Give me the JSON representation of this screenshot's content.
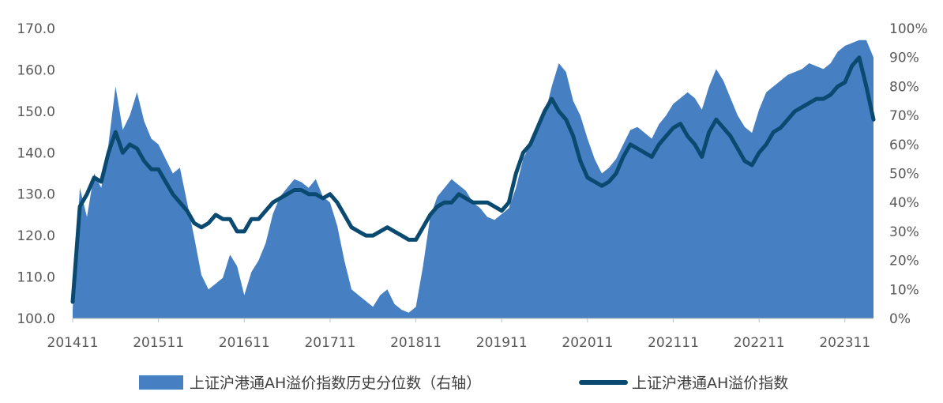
{
  "chart_data": {
    "type": "area",
    "x_tick_labels": [
      "201411",
      "201511",
      "201611",
      "201711",
      "201811",
      "201911",
      "202011",
      "202111",
      "202211",
      "202311"
    ],
    "x": [
      "201411",
      "201412",
      "201501",
      "201502",
      "201503",
      "201504",
      "201505",
      "201506",
      "201507",
      "201508",
      "201509",
      "201510",
      "201511",
      "201512",
      "201601",
      "201602",
      "201603",
      "201604",
      "201605",
      "201606",
      "201607",
      "201608",
      "201609",
      "201610",
      "201611",
      "201612",
      "201701",
      "201702",
      "201703",
      "201704",
      "201705",
      "201706",
      "201707",
      "201708",
      "201709",
      "201710",
      "201711",
      "201712",
      "201801",
      "201802",
      "201803",
      "201804",
      "201805",
      "201806",
      "201807",
      "201808",
      "201809",
      "201810",
      "201811",
      "201812",
      "201901",
      "201902",
      "201903",
      "201904",
      "201905",
      "201906",
      "201907",
      "201908",
      "201909",
      "201910",
      "201911",
      "201912",
      "202001",
      "202002",
      "202003",
      "202004",
      "202005",
      "202006",
      "202007",
      "202008",
      "202009",
      "202010",
      "202011",
      "202012",
      "202101",
      "202102",
      "202103",
      "202104",
      "202105",
      "202106",
      "202107",
      "202108",
      "202109",
      "202110",
      "202111",
      "202112",
      "202201",
      "202202",
      "202203",
      "202204",
      "202205",
      "202206",
      "202207",
      "202208",
      "202209",
      "202210",
      "202211",
      "202212",
      "202301",
      "202302",
      "202303",
      "202304",
      "202305",
      "202306",
      "202307",
      "202308",
      "202309",
      "202310",
      "202311",
      "202312",
      "202401",
      "202402",
      "202403"
    ],
    "y_left": {
      "ticks": [
        "100.0",
        "110.0",
        "120.0",
        "130.0",
        "140.0",
        "150.0",
        "160.0",
        "170.0"
      ],
      "range": [
        100,
        170
      ]
    },
    "y_right": {
      "ticks": [
        "0%",
        "10%",
        "20%",
        "30%",
        "40%",
        "50%",
        "60%",
        "70%",
        "80%",
        "90%",
        "100%"
      ],
      "range": [
        0,
        100
      ]
    },
    "series": [
      {
        "name": "上证沪港通AH溢价指数历史分位数（右轴）",
        "axis": "right",
        "render": "area",
        "color": "#4680c2",
        "values": [
          3,
          45,
          35,
          50,
          45,
          60,
          80,
          65,
          70,
          78,
          68,
          62,
          60,
          55,
          50,
          52,
          40,
          28,
          15,
          10,
          12,
          14,
          22,
          18,
          8,
          16,
          20,
          26,
          36,
          42,
          45,
          48,
          47,
          45,
          48,
          42,
          40,
          32,
          20,
          10,
          8,
          6,
          4,
          8,
          10,
          5,
          3,
          2,
          4,
          18,
          35,
          42,
          45,
          48,
          46,
          44,
          40,
          38,
          35,
          34,
          36,
          38,
          45,
          55,
          60,
          65,
          70,
          80,
          88,
          85,
          75,
          70,
          62,
          55,
          50,
          52,
          55,
          60,
          65,
          66,
          64,
          62,
          67,
          70,
          74,
          76,
          78,
          76,
          72,
          80,
          86,
          82,
          76,
          70,
          66,
          64,
          72,
          78,
          80,
          82,
          84,
          85,
          86,
          88,
          87,
          86,
          88,
          92,
          94,
          95,
          96,
          96,
          90
        ]
      },
      {
        "name": "上证沪港通AH溢价指数",
        "axis": "left",
        "render": "line",
        "color": "#0b4a70",
        "values": [
          104,
          127,
          130,
          134,
          133,
          140,
          145,
          140,
          142,
          141,
          138,
          136,
          136,
          133,
          130,
          128,
          126,
          123,
          122,
          123,
          125,
          124,
          124,
          121,
          121,
          124,
          124,
          126,
          128,
          129,
          130,
          131,
          131,
          130,
          130,
          129,
          130,
          128,
          125,
          122,
          121,
          120,
          120,
          121,
          122,
          121,
          120,
          119,
          119,
          122,
          125,
          127,
          128,
          128,
          130,
          129,
          128,
          128,
          128,
          127,
          126,
          128,
          135,
          140,
          142,
          146,
          150,
          153,
          150,
          148,
          144,
          138,
          134,
          133,
          132,
          133,
          135,
          139,
          142,
          141,
          140,
          139,
          142,
          144,
          146,
          147,
          144,
          142,
          139,
          145,
          148,
          146,
          144,
          141,
          138,
          137,
          140,
          142,
          145,
          146,
          148,
          150,
          151,
          152,
          153,
          153,
          154,
          156,
          157,
          161,
          163,
          156,
          148
        ]
      }
    ],
    "legend_position": "bottom",
    "grid": false
  }
}
